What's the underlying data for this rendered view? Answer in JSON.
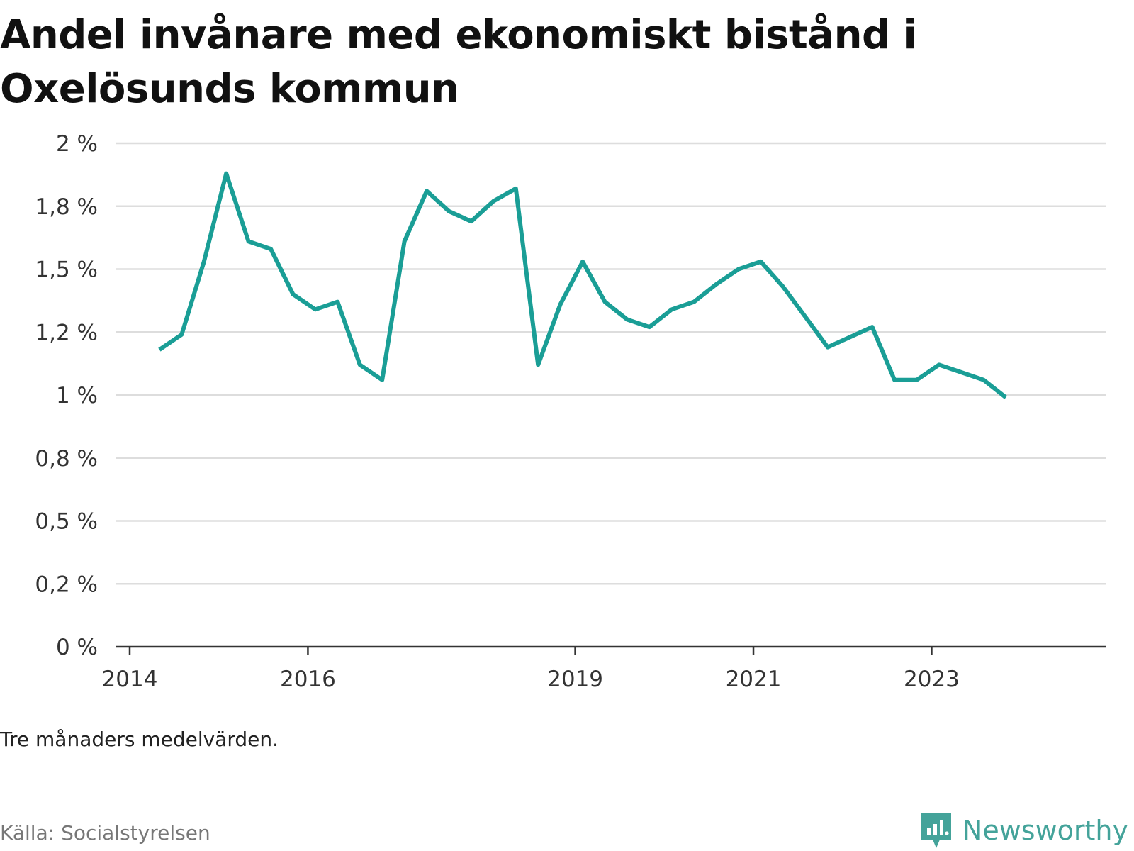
{
  "title": "Andel invånare med ekonomiskt bistånd i Oxelösunds kommun",
  "note": "Tre månaders medelvärden.",
  "source": "Källa: Socialstyrelsen",
  "brand": {
    "name": "Newsworthy",
    "color": "#44a39a",
    "icon": "newsworthy-logo-icon"
  },
  "colors": {
    "line": "#1a9e96",
    "grid": "#dddddd",
    "axis": "#333333",
    "text": "#333333"
  },
  "chart_data": {
    "type": "line",
    "title": "Andel invånare med ekonomiskt bistånd i Oxelösunds kommun",
    "xlabel": "",
    "ylabel": "",
    "x_ticks": [
      "2014",
      "2016",
      "2019",
      "2021",
      "2023"
    ],
    "y_ticks": [
      "0 %",
      "0,2 %",
      "0,5 %",
      "0,8 %",
      "1 %",
      "1,2 %",
      "1,5 %",
      "1,8 %",
      "2 %"
    ],
    "ylim": [
      0,
      2.0
    ],
    "grid": true,
    "series": [
      {
        "name": "",
        "color": "#1a9e96",
        "points": [
          [
            "2014-05",
            1.18
          ],
          [
            "2014-08",
            1.24
          ],
          [
            "2014-11",
            1.53
          ],
          [
            "2015-02",
            1.88
          ],
          [
            "2015-05",
            1.61
          ],
          [
            "2015-08",
            1.58
          ],
          [
            "2015-11",
            1.4
          ],
          [
            "2016-02",
            1.34
          ],
          [
            "2016-05",
            1.37
          ],
          [
            "2016-08",
            1.12
          ],
          [
            "2016-11",
            1.06
          ],
          [
            "2017-02",
            1.61
          ],
          [
            "2017-05",
            1.81
          ],
          [
            "2017-08",
            1.73
          ],
          [
            "2017-11",
            1.69
          ],
          [
            "2018-02",
            1.77
          ],
          [
            "2018-05",
            1.82
          ],
          [
            "2018-08",
            1.12
          ],
          [
            "2018-11",
            1.36
          ],
          [
            "2019-02",
            1.53
          ],
          [
            "2019-05",
            1.37
          ],
          [
            "2019-08",
            1.3
          ],
          [
            "2019-11",
            1.27
          ],
          [
            "2020-02",
            1.34
          ],
          [
            "2020-05",
            1.37
          ],
          [
            "2020-08",
            1.44
          ],
          [
            "2020-11",
            1.5
          ],
          [
            "2021-02",
            1.53
          ],
          [
            "2021-05",
            1.43
          ],
          [
            "2021-08",
            1.31
          ],
          [
            "2021-11",
            1.19
          ],
          [
            "2022-02",
            1.23
          ],
          [
            "2022-05",
            1.27
          ],
          [
            "2022-08",
            1.06
          ],
          [
            "2022-11",
            1.06
          ],
          [
            "2023-02",
            1.12
          ],
          [
            "2023-05",
            1.09
          ],
          [
            "2023-08",
            1.06
          ],
          [
            "2023-11",
            0.99
          ]
        ]
      }
    ]
  }
}
